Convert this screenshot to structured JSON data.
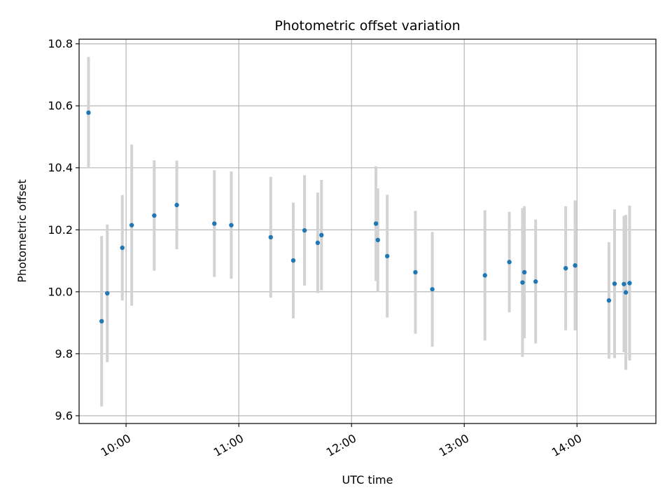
{
  "chart_data": {
    "type": "scatter",
    "title": "Photometric offset variation",
    "xlabel": "UTC time",
    "ylabel": "Photometric offset",
    "x_unit": "hours UTC",
    "xlim": [
      "09:35",
      "14:42"
    ],
    "ylim": [
      9.575,
      10.815
    ],
    "x_ticks": [
      "10:00",
      "11:00",
      "12:00",
      "13:00",
      "14:00"
    ],
    "y_ticks": [
      "9.6",
      "9.8",
      "10.0",
      "10.2",
      "10.4",
      "10.6",
      "10.8"
    ],
    "grid": true,
    "colors": {
      "point": "#1f77b4",
      "errorbar": "#d3d3d3",
      "grid": "#b0b0b0"
    },
    "series": [
      {
        "points": [
          {
            "t": "09:40",
            "y": 10.578,
            "err": 0.18
          },
          {
            "t": "09:47",
            "y": 9.905,
            "err": 0.275
          },
          {
            "t": "09:50",
            "y": 9.995,
            "err": 0.222
          },
          {
            "t": "09:58",
            "y": 10.142,
            "err": 0.17
          },
          {
            "t": "10:03",
            "y": 10.215,
            "err": 0.26
          },
          {
            "t": "10:15",
            "y": 10.246,
            "err": 0.178
          },
          {
            "t": "10:27",
            "y": 10.28,
            "err": 0.143
          },
          {
            "t": "10:47",
            "y": 10.22,
            "err": 0.172
          },
          {
            "t": "10:56",
            "y": 10.215,
            "err": 0.173
          },
          {
            "t": "11:17",
            "y": 10.176,
            "err": 0.195
          },
          {
            "t": "11:29",
            "y": 10.101,
            "err": 0.187
          },
          {
            "t": "11:35",
            "y": 10.198,
            "err": 0.178
          },
          {
            "t": "11:42",
            "y": 10.158,
            "err": 0.162
          },
          {
            "t": "11:44",
            "y": 10.183,
            "err": 0.178
          },
          {
            "t": "12:13",
            "y": 10.22,
            "err": 0.185
          },
          {
            "t": "12:14",
            "y": 10.167,
            "err": 0.167
          },
          {
            "t": "12:19",
            "y": 10.115,
            "err": 0.198
          },
          {
            "t": "12:34",
            "y": 10.063,
            "err": 0.198
          },
          {
            "t": "12:43",
            "y": 10.008,
            "err": 0.185
          },
          {
            "t": "13:11",
            "y": 10.053,
            "err": 0.21
          },
          {
            "t": "13:24",
            "y": 10.096,
            "err": 0.162
          },
          {
            "t": "13:31",
            "y": 10.03,
            "err": 0.24
          },
          {
            "t": "13:32",
            "y": 10.063,
            "err": 0.213
          },
          {
            "t": "13:38",
            "y": 10.033,
            "err": 0.2
          },
          {
            "t": "13:54",
            "y": 10.076,
            "err": 0.2
          },
          {
            "t": "13:59",
            "y": 10.085,
            "err": 0.21
          },
          {
            "t": "14:17",
            "y": 9.972,
            "err": 0.188
          },
          {
            "t": "14:20",
            "y": 10.026,
            "err": 0.24
          },
          {
            "t": "14:25",
            "y": 10.025,
            "err": 0.22
          },
          {
            "t": "14:26",
            "y": 9.998,
            "err": 0.25
          },
          {
            "t": "14:28",
            "y": 10.028,
            "err": 0.25
          }
        ]
      }
    ]
  }
}
